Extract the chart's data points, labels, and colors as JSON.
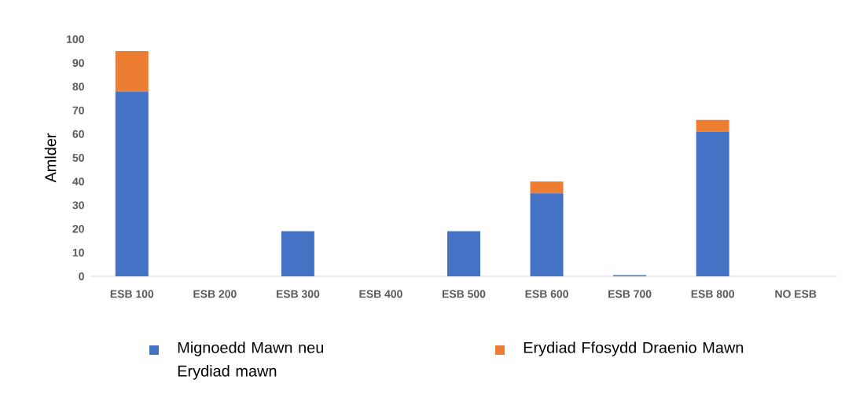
{
  "chart_data": {
    "type": "bar",
    "stacked": true,
    "ylabel": "Amlder",
    "categories": [
      "ESB 100",
      "ESB 200",
      "ESB 300",
      "ESB 400",
      "ESB 500",
      "ESB 600",
      "ESB 700",
      "ESB 800",
      "NO ESB"
    ],
    "series": [
      {
        "name": "Mignoedd Mawn neu Erydiad mawn",
        "color": "#4472c4",
        "values": [
          78,
          0,
          19,
          0,
          19,
          35,
          0.5,
          61,
          0
        ]
      },
      {
        "name": "Erydiad Ffosydd Draenio Mawn",
        "color": "#ed7d31",
        "values": [
          17,
          0,
          0,
          0,
          0,
          5,
          0,
          5,
          0
        ]
      }
    ],
    "ylim": [
      0,
      100
    ],
    "yticks": [
      0,
      10,
      20,
      30,
      40,
      50,
      60,
      70,
      80,
      90,
      100
    ],
    "grid": false,
    "legend": "bottom"
  }
}
